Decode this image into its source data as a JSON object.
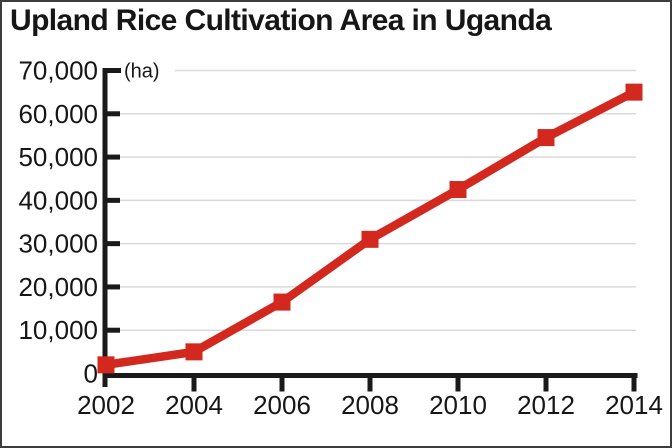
{
  "chart_data": {
    "type": "line",
    "title": "Upland Rice Cultivation Area in Uganda",
    "unit_label": "(ha)",
    "x": [
      2002,
      2004,
      2006,
      2008,
      2010,
      2012,
      2014
    ],
    "x_tick_labels": [
      "2002",
      "2004",
      "2006",
      "2008",
      "2010",
      "2012",
      "2014"
    ],
    "series": [
      {
        "name": "upland-rice-cultivation-area",
        "values": [
          2000,
          5000,
          16500,
          31000,
          42500,
          54500,
          65000
        ],
        "color": "#d2281e",
        "marker": "square"
      }
    ],
    "ylim": [
      0,
      70000
    ],
    "y_tick_step": 10000,
    "y_tick_labels": [
      "0",
      "10,000",
      "20,000",
      "30,000",
      "40,000",
      "50,000",
      "60,000",
      "70,000"
    ],
    "grid": "horizontal",
    "legend": "none",
    "colors": {
      "axis": "#1a1a1a",
      "gridline": "#d9d9d9",
      "text": "#161616",
      "frame_border": "#3d3d3d"
    }
  }
}
